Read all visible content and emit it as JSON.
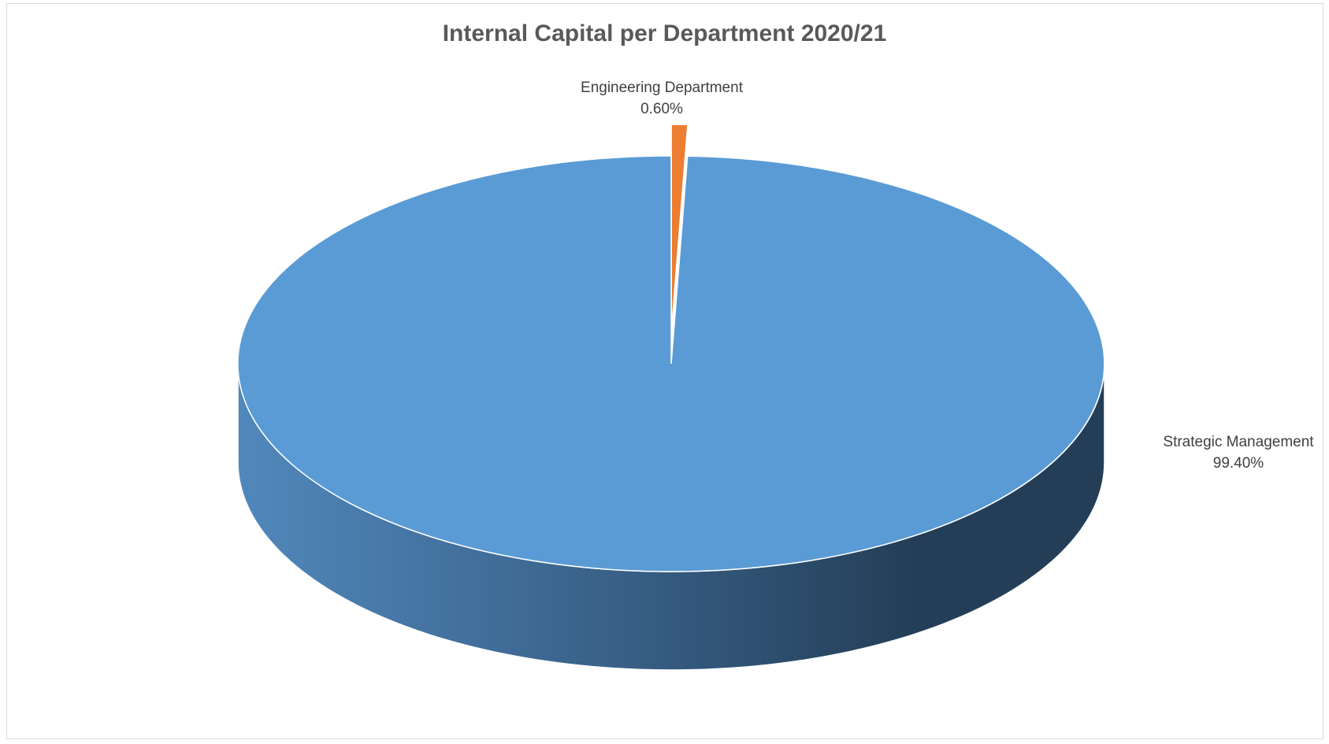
{
  "chart_data": {
    "type": "pie",
    "title": "Internal Capital per Department 2020/21",
    "categories": [
      "Engineering Department",
      "Strategic Management"
    ],
    "values": [
      0.6,
      99.4
    ],
    "labels": [
      "0.60%",
      "99.40%"
    ],
    "unit": "%",
    "style": "3d",
    "legend": "none",
    "colors": [
      "#ED7D31",
      "#5B9BD5"
    ]
  }
}
